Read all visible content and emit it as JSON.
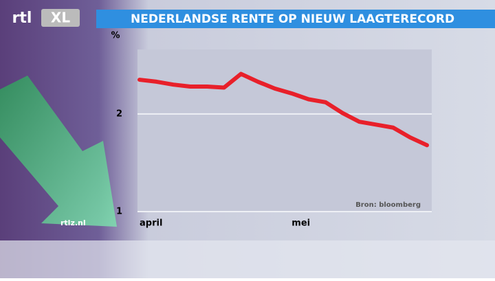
{
  "logo": {
    "left": "rtl",
    "right": "XL"
  },
  "website": "rtlz.nl",
  "chart_data": {
    "type": "line",
    "title": "NEDERLANDSE RENTE OP NIEUW LAAGTERECORD",
    "y_unit": "%",
    "source": "Bron: bloomberg",
    "categories": [
      "april",
      null,
      null,
      null,
      null,
      null,
      null,
      null,
      null,
      "mei",
      null,
      null,
      null,
      null,
      null,
      null,
      null,
      null
    ],
    "values": [
      2.35,
      2.33,
      2.3,
      2.28,
      2.28,
      2.27,
      2.41,
      2.33,
      2.26,
      2.21,
      2.15,
      2.12,
      2.01,
      1.92,
      1.89,
      1.86,
      1.76,
      1.68
    ],
    "color": "#e8202a",
    "ylim": [
      1,
      2.66
    ],
    "yticks": [
      1,
      2
    ],
    "grid": true
  }
}
